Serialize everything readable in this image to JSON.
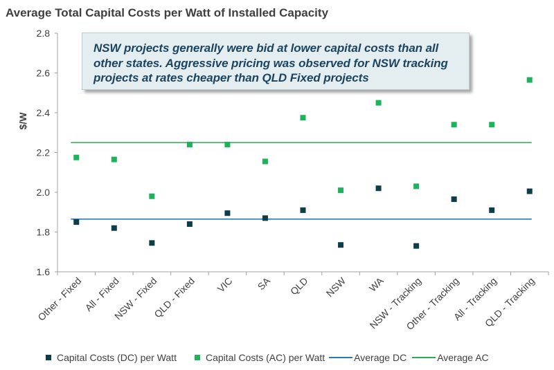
{
  "title": "Average Total Capital Costs per Watt of Installed Capacity",
  "callout": "NSW projects generally were bid at lower capital costs than all other states. Aggressive pricing was observed for NSW tracking projects at rates cheaper than QLD Fixed projects",
  "colors": {
    "dc": "#0e3d4a",
    "ac": "#1db35a",
    "avg_dc": "#2a7ab5",
    "avg_ac": "#2cab58",
    "axis": "#a0a0a0",
    "text": "#404040"
  },
  "chart_data": {
    "type": "scatter",
    "title": "Average Total Capital Costs per Watt of Installed Capacity",
    "xlabel": "",
    "ylabel": "$/W",
    "ylim": [
      1.6,
      2.8
    ],
    "yticks": [
      "1.6",
      "1.8",
      "2.0",
      "2.2",
      "2.4",
      "2.6",
      "2.8"
    ],
    "grid": false,
    "legend_position": "bottom",
    "categories": [
      "Other - Fixed",
      "All - Fixed",
      "NSW - Fixed",
      "QLD - Fixed",
      "VIC",
      "SA",
      "QLD",
      "NSW",
      "WA",
      "NSW - Tracking",
      "Other - Tracking",
      "All - Tracking",
      "QLD - Tracking"
    ],
    "series": [
      {
        "name": "Capital Costs (DC) per Watt",
        "kind": "marker",
        "values": [
          1.85,
          1.82,
          1.745,
          1.84,
          1.895,
          1.87,
          1.91,
          1.735,
          2.02,
          1.73,
          1.965,
          1.91,
          2.005
        ]
      },
      {
        "name": "Capital Costs (AC) per Watt",
        "kind": "marker",
        "values": [
          2.175,
          2.165,
          1.98,
          2.24,
          2.24,
          2.155,
          2.375,
          2.01,
          2.45,
          2.03,
          2.34,
          2.34,
          2.565
        ]
      },
      {
        "name": "Average DC",
        "kind": "line",
        "value": 1.865
      },
      {
        "name": "Average AC",
        "kind": "line",
        "value": 2.25
      }
    ]
  }
}
